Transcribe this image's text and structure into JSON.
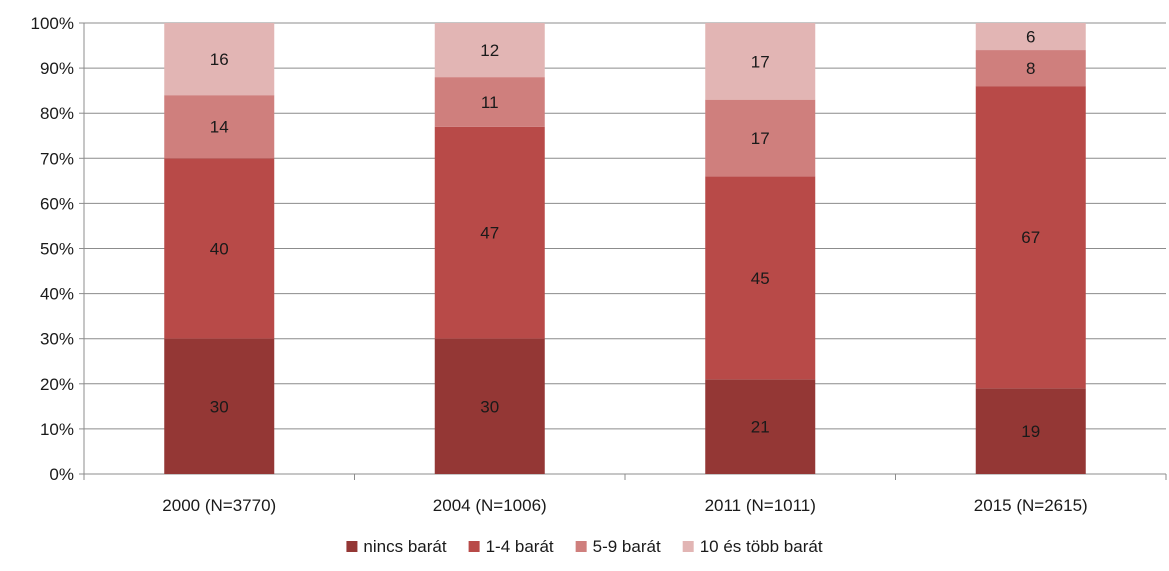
{
  "chart_data": {
    "type": "bar",
    "stacked": true,
    "percent_stacked": true,
    "categories": [
      "2000 (N=3770)",
      "2004 (N=1006)",
      "2011 (N=1011)",
      "2015 (N=2615)"
    ],
    "series": [
      {
        "name": "nincs barát",
        "values": [
          30,
          30,
          21,
          19
        ],
        "color": "#943735"
      },
      {
        "name": "1-4 barát",
        "values": [
          40,
          47,
          45,
          67
        ],
        "color": "#b84a48"
      },
      {
        "name": "5-9 barát",
        "values": [
          14,
          11,
          17,
          8
        ],
        "color": "#cf7f7d"
      },
      {
        "name": "10 és több barát",
        "values": [
          16,
          12,
          17,
          6
        ],
        "color": "#e2b5b4"
      }
    ],
    "title": "",
    "xlabel": "",
    "ylabel": "",
    "ylim": [
      0,
      100
    ],
    "yticks": [
      "0%",
      "10%",
      "20%",
      "30%",
      "40%",
      "50%",
      "60%",
      "70%",
      "80%",
      "90%",
      "100%"
    ],
    "grid": true,
    "legend_position": "bottom"
  }
}
